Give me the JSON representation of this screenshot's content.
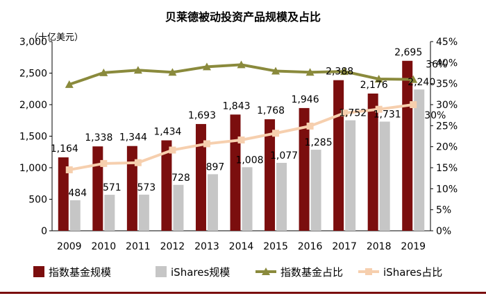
{
  "chart_data": {
    "type": "bar",
    "title": "贝莱德被动投资产品规模及占比",
    "unit_label": "（十亿美元）",
    "categories": [
      "2009",
      "2010",
      "2011",
      "2012",
      "2013",
      "2014",
      "2015",
      "2016",
      "2017",
      "2018",
      "2019"
    ],
    "y_left": {
      "min": 0,
      "max": 3000,
      "ticks": [
        "0",
        "500",
        "1,000",
        "1,500",
        "2,000",
        "2,500",
        "3,000"
      ]
    },
    "y_right": {
      "min": 0,
      "max": 45,
      "ticks": [
        "0%",
        "5%",
        "10%",
        "15%",
        "20%",
        "25%",
        "30%",
        "35%",
        "40%",
        "45%"
      ]
    },
    "series": [
      {
        "name": "指数基金规模",
        "kind": "bar",
        "axis": "left",
        "color": "#7b0e0e",
        "values": [
          1164,
          1338,
          1344,
          1434,
          1693,
          1843,
          1768,
          1946,
          2388,
          2176,
          2695
        ],
        "labels": [
          "1,164",
          "1,338",
          "1,344",
          "1,434",
          "1,693",
          "1,843",
          "1,768",
          "1,946",
          "2,388",
          "2,176",
          "2,695"
        ]
      },
      {
        "name": "iShares规模",
        "kind": "bar",
        "axis": "left",
        "color": "#c6c6c6",
        "values": [
          484,
          571,
          573,
          728,
          897,
          1008,
          1077,
          1285,
          1752,
          1731,
          2240
        ],
        "labels": [
          "484",
          "571",
          "573",
          "728",
          "897",
          "1,008",
          "1,077",
          "1,285",
          "1,752",
          "1,731",
          "2,240"
        ]
      },
      {
        "name": "指数基金占比",
        "kind": "line",
        "axis": "right",
        "color": "#8a8a3c",
        "marker": "triangle",
        "values": [
          34.8,
          37.6,
          38.2,
          37.7,
          39.0,
          39.5,
          38.0,
          37.7,
          37.9,
          36.1,
          36.0
        ],
        "end_label": "36%"
      },
      {
        "name": "iShares占比",
        "kind": "line",
        "axis": "right",
        "color": "#f6cfae",
        "marker": "square",
        "values": [
          14.5,
          16.0,
          16.2,
          19.2,
          20.7,
          21.6,
          23.2,
          24.9,
          28.0,
          28.9,
          30.0
        ],
        "end_label": "30%"
      }
    ],
    "legend_position": "bottom",
    "grid": false
  }
}
